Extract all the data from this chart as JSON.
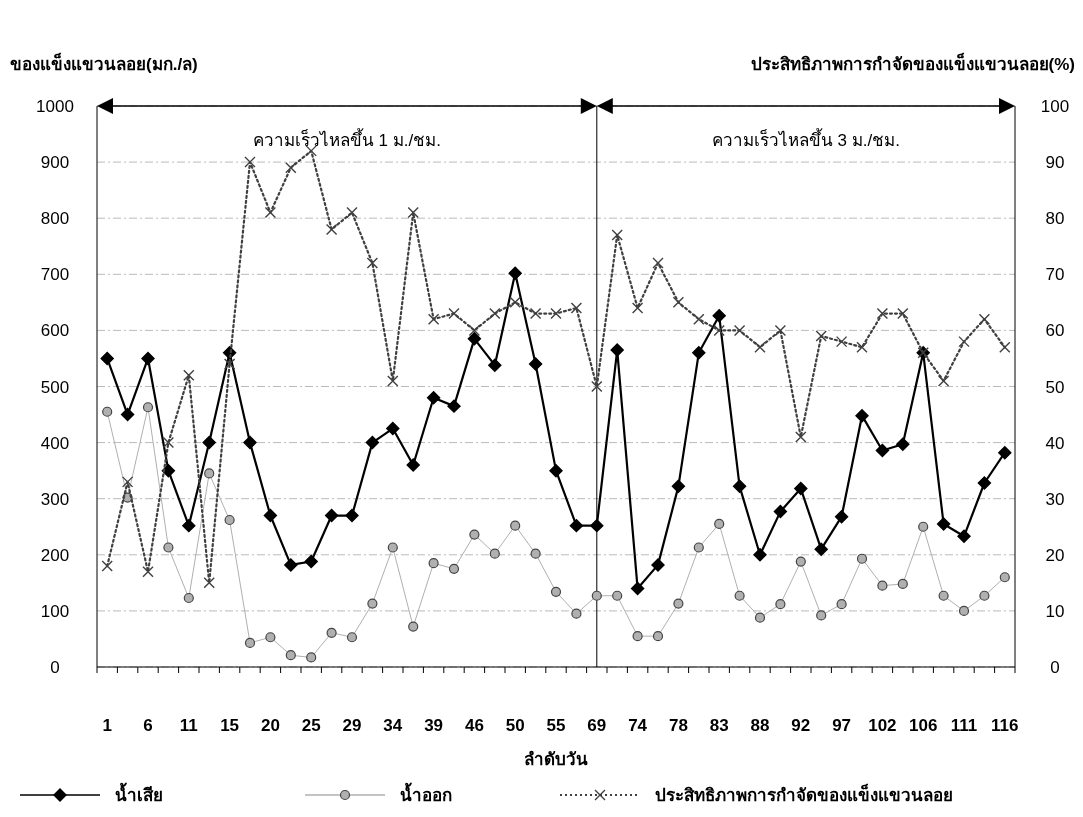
{
  "chart_data": {
    "type": "line",
    "xlabel": "ลำดับวัน",
    "ylabel": "ของแข็งแขวนลอย(มก./ล)",
    "y2label": "ประสิทธิภาพการกำจัดของแข็งแขวนลอย(%)",
    "categories": [
      "1",
      null,
      "6",
      null,
      "11",
      null,
      "15",
      null,
      "20",
      null,
      "25",
      null,
      "29",
      null,
      "34",
      null,
      "39",
      null,
      "46",
      null,
      "50",
      null,
      "55",
      null,
      "69",
      null,
      "74",
      null,
      "78",
      null,
      "83",
      null,
      "88",
      null,
      "92",
      null,
      "97",
      null,
      "102",
      null,
      "106",
      null,
      "111",
      null,
      "116"
    ],
    "series": [
      {
        "name": "น้ำเสีย",
        "color": "#000000",
        "marker": "diamond",
        "line_style": "solid",
        "values": [
          550,
          450,
          550,
          350,
          252,
          400,
          560,
          400,
          270,
          182,
          188,
          270,
          270,
          400,
          425,
          360,
          480,
          465,
          585,
          538,
          702,
          540,
          350,
          252,
          252,
          565,
          140,
          182,
          322,
          560,
          626,
          322,
          200,
          277,
          318,
          210,
          268,
          448,
          386,
          397,
          560,
          255,
          233,
          328,
          382
        ]
      },
      {
        "name": "น้ำออก",
        "color": "#b0b0b0",
        "marker": "circle",
        "line_style": "solid",
        "values": [
          455,
          302,
          463,
          213,
          123,
          345,
          262,
          43,
          53,
          21,
          17,
          61,
          53,
          113,
          213,
          72,
          185,
          175,
          236,
          202,
          252,
          202,
          134,
          95,
          127,
          127,
          55,
          55,
          113,
          213,
          255,
          127,
          88,
          112,
          188,
          92,
          112,
          193,
          145,
          148,
          250,
          127,
          100,
          127,
          160
        ]
      },
      {
        "name": "ประสิทธิภาพการกำจัดของแข็งแขวนลอย",
        "color": "#404040",
        "marker": "cross",
        "line_style": "dotted",
        "axis": "y2",
        "values": [
          18,
          33,
          17,
          40,
          52,
          15,
          54,
          90,
          81,
          89,
          92,
          78,
          81,
          72,
          51,
          81,
          62,
          63,
          60,
          63,
          65,
          63,
          63,
          64,
          50,
          77,
          64,
          72,
          65,
          62,
          60,
          60,
          57,
          60,
          41,
          59,
          58,
          57,
          63,
          63,
          56,
          51,
          58,
          62,
          57
        ]
      }
    ],
    "ylim": [
      0,
      1000
    ],
    "yticks": [
      0,
      100,
      200,
      300,
      400,
      500,
      600,
      700,
      800,
      900,
      1000
    ],
    "y2lim": [
      0,
      100
    ],
    "y2ticks": [
      0,
      10,
      20,
      30,
      40,
      50,
      60,
      70,
      80,
      90,
      100
    ],
    "grid": "y",
    "legend": "bottom",
    "ref_lines": [
      {
        "axis": "x",
        "value": "69",
        "color": "#000000"
      }
    ],
    "annotations": [
      "ความเร็วไหลขึ้น 1 ม./ชม.",
      "ความเร็วไหลขึ้น 3 ม./ชม."
    ]
  }
}
